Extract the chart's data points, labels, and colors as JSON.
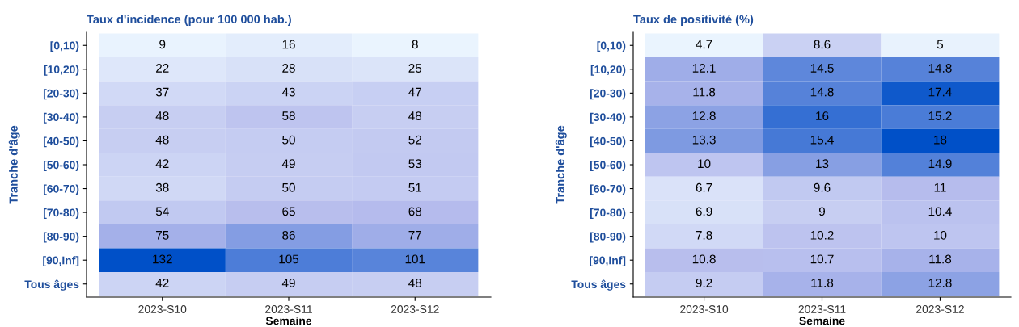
{
  "chart_data": [
    {
      "type": "heatmap",
      "title": "Taux d'incidence (pour 100 000 hab.)",
      "xlabel": "Semaine",
      "ylabel": "Tranche d'âge",
      "categories": [
        "2023-S10",
        "2023-S11",
        "2023-S12"
      ],
      "y_categories": [
        "[0,10)",
        "[10,20)",
        "[20-30)",
        "[30-40)",
        "[40-50)",
        "[50-60)",
        "[60-70)",
        "[70-80)",
        "[80-90)",
        "[90,Inf]",
        "Tous âges"
      ],
      "cells": [
        [
          9,
          16,
          8
        ],
        [
          22,
          28,
          25
        ],
        [
          37,
          43,
          47
        ],
        [
          48,
          58,
          48
        ],
        [
          48,
          50,
          52
        ],
        [
          42,
          49,
          53
        ],
        [
          38,
          50,
          51
        ],
        [
          54,
          65,
          68
        ],
        [
          75,
          86,
          77
        ],
        [
          132,
          105,
          101
        ],
        [
          42,
          49,
          48
        ]
      ],
      "colors": [
        "#eaf4fe",
        "#b3b9ec",
        "#0050c8"
      ],
      "data_labels": true,
      "grid": false
    },
    {
      "type": "heatmap",
      "title": "Taux de positivité (%)",
      "xlabel": "Semaine",
      "ylabel": "Tranche d'âge",
      "categories": [
        "2023-S10",
        "2023-S11",
        "2023-S12"
      ],
      "y_categories": [
        "[0,10)",
        "[10,20)",
        "[20-30)",
        "[30-40)",
        "[40-50)",
        "[50-60)",
        "[60-70)",
        "[70-80)",
        "[80-90)",
        "[90,Inf]",
        "Tous âges"
      ],
      "cells": [
        [
          4.7,
          8.6,
          5
        ],
        [
          12.1,
          14.5,
          14.8
        ],
        [
          11.8,
          14.8,
          17.4
        ],
        [
          12.8,
          16,
          15.2
        ],
        [
          13.3,
          15.4,
          18
        ],
        [
          10,
          13,
          14.9
        ],
        [
          6.7,
          9.6,
          11
        ],
        [
          6.9,
          9,
          10.4
        ],
        [
          7.8,
          10.2,
          10
        ],
        [
          10.8,
          10.7,
          11.8
        ],
        [
          9.2,
          11.8,
          12.8
        ]
      ],
      "colors": [
        "#eaf4fe",
        "#b3b9ec",
        "#0050c8"
      ],
      "data_labels": true,
      "grid": false
    }
  ]
}
